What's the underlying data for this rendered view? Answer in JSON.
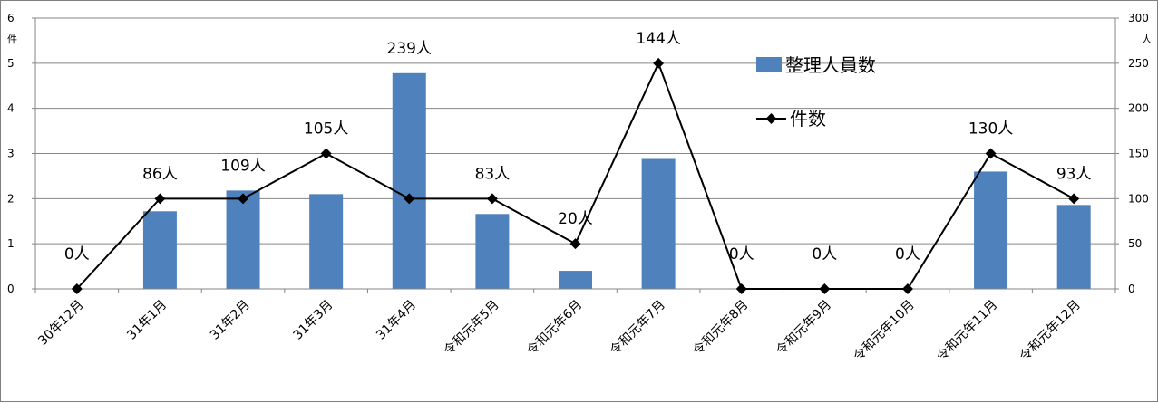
{
  "chart_data": {
    "type": "bar+line",
    "categories": [
      "30年12月",
      "31年1月",
      "31年2月",
      "31年3月",
      "31年4月",
      "令和元年5月",
      "令和元年6月",
      "令和元年7月",
      "令和元年8月",
      "令和元年9月",
      "令和元年10月",
      "令和元年11月",
      "令和元年12月"
    ],
    "series": [
      {
        "name": "整理人員数",
        "type": "bar",
        "axis": "right",
        "color": "#4f81bd",
        "values": [
          0,
          86,
          109,
          105,
          239,
          83,
          20,
          144,
          0,
          0,
          0,
          130,
          93
        ],
        "labels": [
          "0人",
          "86人",
          "109人",
          "105人",
          "239人",
          "83人",
          "20人",
          "144人",
          "0人",
          "0人",
          "0人",
          "130人",
          "93人"
        ]
      },
      {
        "name": "件数",
        "type": "line",
        "axis": "left",
        "color": "#000000",
        "marker": "diamond",
        "values": [
          0,
          2,
          2,
          3,
          2,
          2,
          1,
          5,
          0,
          0,
          0,
          3,
          2
        ]
      }
    ],
    "y_left": {
      "unit": "件",
      "range": [
        0,
        6
      ],
      "ticks": [
        "0",
        "1",
        "2",
        "3",
        "4",
        "5",
        "6"
      ]
    },
    "y_right": {
      "unit": "人",
      "range": [
        0,
        300
      ],
      "ticks": [
        "0",
        "50",
        "100",
        "150",
        "200",
        "250",
        "300"
      ]
    },
    "grid": true,
    "legend_position": "top-right-inside"
  }
}
